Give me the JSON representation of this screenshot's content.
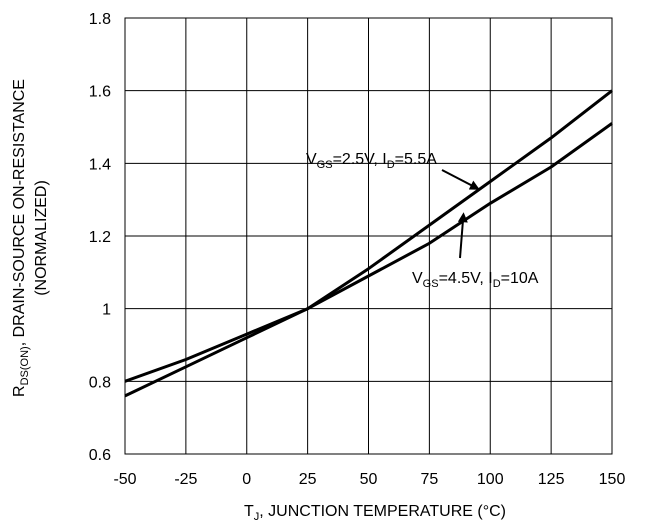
{
  "chart_data": {
    "type": "line",
    "title": "",
    "xlabel_parts": [
      "T",
      "J",
      ", JUNCTION TEMPERATURE (°C)"
    ],
    "ylabel_line1_parts": [
      "R",
      "DS(ON)",
      ", DRAIN-SOURCE ON-RESISTANCE"
    ],
    "ylabel_line2": "(NORMALIZED)",
    "xlim": [
      -50,
      150
    ],
    "ylim": [
      0.6,
      1.8
    ],
    "xticks": [
      -50,
      -25,
      0,
      25,
      50,
      75,
      100,
      125,
      150
    ],
    "yticks": [
      0.6,
      0.8,
      1,
      1.2,
      1.4,
      1.6,
      1.8
    ],
    "ytick_labels": [
      "0.6",
      "0.8",
      "1",
      "1.2",
      "1.4",
      "1.6",
      "1.8"
    ],
    "grid": true,
    "series": [
      {
        "x": [
          -50,
          -25,
          0,
          25,
          50,
          75,
          100,
          125,
          150
        ],
        "y": [
          0.76,
          0.84,
          0.92,
          1.0,
          1.11,
          1.23,
          1.35,
          1.47,
          1.6
        ]
      },
      {
        "x": [
          -50,
          -25,
          0,
          25,
          50,
          75,
          100,
          125,
          150
        ],
        "y": [
          0.8,
          0.86,
          0.93,
          1.0,
          1.09,
          1.18,
          1.29,
          1.39,
          1.51
        ]
      }
    ],
    "annotations": [
      {
        "parts": [
          "V",
          "GS",
          "=2.5V, I",
          "D",
          "=5.5A"
        ],
        "series_index": 0,
        "arrow_to": [
          95,
          1.33
        ]
      },
      {
        "parts": [
          "V",
          "GS",
          "=4.5V, I",
          "D",
          "=10A"
        ],
        "series_index": 1,
        "arrow_to": [
          89,
          1.26
        ]
      }
    ]
  }
}
